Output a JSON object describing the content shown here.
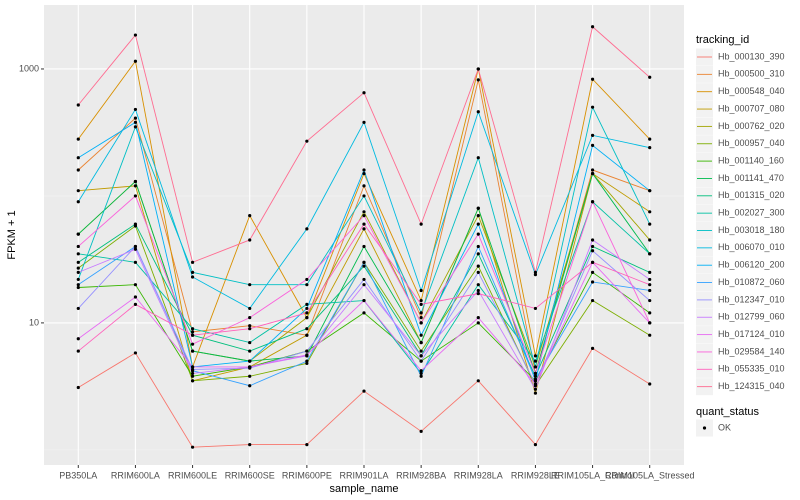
{
  "chart_data": {
    "type": "line",
    "x_label": "sample_name",
    "y_label": "FPKM + 1",
    "categories": [
      "PB350LA",
      "RRIM600LA",
      "RRIM600LE",
      "RRIM600SE",
      "RRIM600PE",
      "RRIM901LA",
      "RRIM928BA",
      "RRIM928LA",
      "RRIM928LE",
      "RRIM105LA_Control",
      "RRIM105LA_Stressed"
    ],
    "ylim": [
      0.76,
      3190
    ],
    "yticks": [
      10,
      1000
    ],
    "log_y": true,
    "grid": true,
    "legend_position": "right",
    "legend_title": "tracking_id",
    "shape_legend": {
      "title": "quant_status",
      "labels": [
        "OK"
      ]
    },
    "series": [
      {
        "name": "Hb_000130_390",
        "color": "#F8766D",
        "values": [
          3.1,
          5.8,
          1.05,
          1.1,
          1.1,
          2.9,
          1.4,
          3.5,
          1.1,
          6.3,
          3.3
        ]
      },
      {
        "name": "Hb_000500_310",
        "color": "#EA8331",
        "values": [
          160,
          410,
          8.5,
          9.5,
          8,
          120,
          11,
          820,
          4,
          160,
          110
        ]
      },
      {
        "name": "Hb_000548_040",
        "color": "#D89000",
        "values": [
          280,
          1150,
          4.5,
          70,
          11,
          150,
          15,
          1000,
          5.5,
          830,
          280
        ]
      },
      {
        "name": "Hb_000707_080",
        "color": "#C09B00",
        "values": [
          110,
          120,
          3.5,
          4.5,
          8,
          55,
          7,
          80,
          2.8,
          150,
          75
        ]
      },
      {
        "name": "Hb_000762_020",
        "color": "#A3A500",
        "values": [
          50,
          130,
          6,
          5,
          11,
          75,
          10,
          70,
          4.5,
          150,
          45
        ]
      },
      {
        "name": "Hb_000957_040",
        "color": "#7CAE00",
        "values": [
          27,
          58,
          3.5,
          3.8,
          4.8,
          30,
          6,
          28,
          3.2,
          15,
          8
        ]
      },
      {
        "name": "Hb_001140_160",
        "color": "#39B600",
        "values": [
          19,
          20,
          3.8,
          4.5,
          6,
          12,
          5,
          10,
          3.5,
          25,
          12
        ]
      },
      {
        "name": "Hb_001141_470",
        "color": "#00BB4E",
        "values": [
          50,
          130,
          6,
          5,
          5.5,
          40,
          7,
          80,
          4,
          150,
          35
        ]
      },
      {
        "name": "Hb_001315_020",
        "color": "#00BF7D",
        "values": [
          30,
          60,
          8,
          6,
          9,
          28,
          5.5,
          35,
          3.8,
          40,
          25
        ]
      },
      {
        "name": "Hb_002027_300",
        "color": "#00C1A3",
        "values": [
          35,
          30,
          9,
          7,
          14,
          15,
          4,
          20,
          5,
          90,
          35
        ]
      },
      {
        "name": "Hb_003018_180",
        "color": "#00BFC4",
        "values": [
          22,
          350,
          25,
          20,
          20,
          100,
          12,
          200,
          4.5,
          500,
          60
        ]
      },
      {
        "name": "Hb_006070_010",
        "color": "#00BAE0",
        "values": [
          90,
          480,
          23,
          13,
          55,
          380,
          18,
          460,
          24,
          300,
          240
        ]
      },
      {
        "name": "Hb_006120_200",
        "color": "#00B0F6",
        "values": [
          200,
          380,
          4.5,
          5,
          13,
          160,
          8,
          60,
          3.5,
          250,
          110
        ]
      },
      {
        "name": "Hb_010872_060",
        "color": "#35A2FF",
        "values": [
          20,
          40,
          4.2,
          3.2,
          5,
          30,
          3.8,
          40,
          3.6,
          21,
          18
        ]
      },
      {
        "name": "Hb_012347_010",
        "color": "#9590FF",
        "values": [
          13,
          40,
          4.3,
          4.4,
          6,
          22,
          5,
          25,
          3.3,
          37,
          15
        ]
      },
      {
        "name": "Hb_012799_060",
        "color": "#C77CFF",
        "values": [
          25,
          38,
          4,
          4.5,
          5.5,
          20,
          5.5,
          18,
          3,
          45,
          22
        ]
      },
      {
        "name": "Hb_017124_010",
        "color": "#E76BF3",
        "values": [
          7.5,
          16,
          4.5,
          4.5,
          5.6,
          15,
          4.2,
          11,
          3.3,
          30,
          10
        ]
      },
      {
        "name": "Hb_029584_140",
        "color": "#FA62DB",
        "values": [
          40,
          100,
          6.8,
          11,
          22,
          70,
          10,
          50,
          4,
          90,
          10
        ]
      },
      {
        "name": "Hb_055335_010",
        "color": "#FF62BC",
        "values": [
          6,
          14,
          8,
          9,
          12,
          60,
          14,
          17,
          13,
          30,
          20
        ]
      },
      {
        "name": "Hb_124315_040",
        "color": "#FF6C91",
        "values": [
          520,
          1850,
          30,
          45,
          270,
          650,
          60,
          1000,
          25,
          2150,
          860
        ]
      }
    ]
  }
}
